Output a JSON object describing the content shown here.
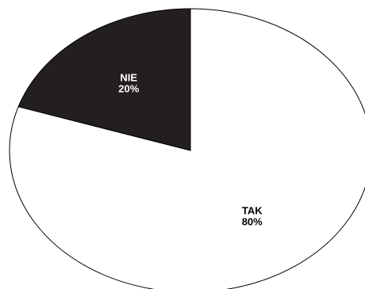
{
  "chart_data": {
    "type": "pie",
    "categories": [
      "TAK",
      "NIE"
    ],
    "values": [
      80,
      20
    ],
    "value_labels": [
      "80%",
      "20%"
    ],
    "colors": [
      "#ffffff",
      "#231f20"
    ],
    "label_colors": [
      "#000000",
      "#ffffff"
    ]
  }
}
